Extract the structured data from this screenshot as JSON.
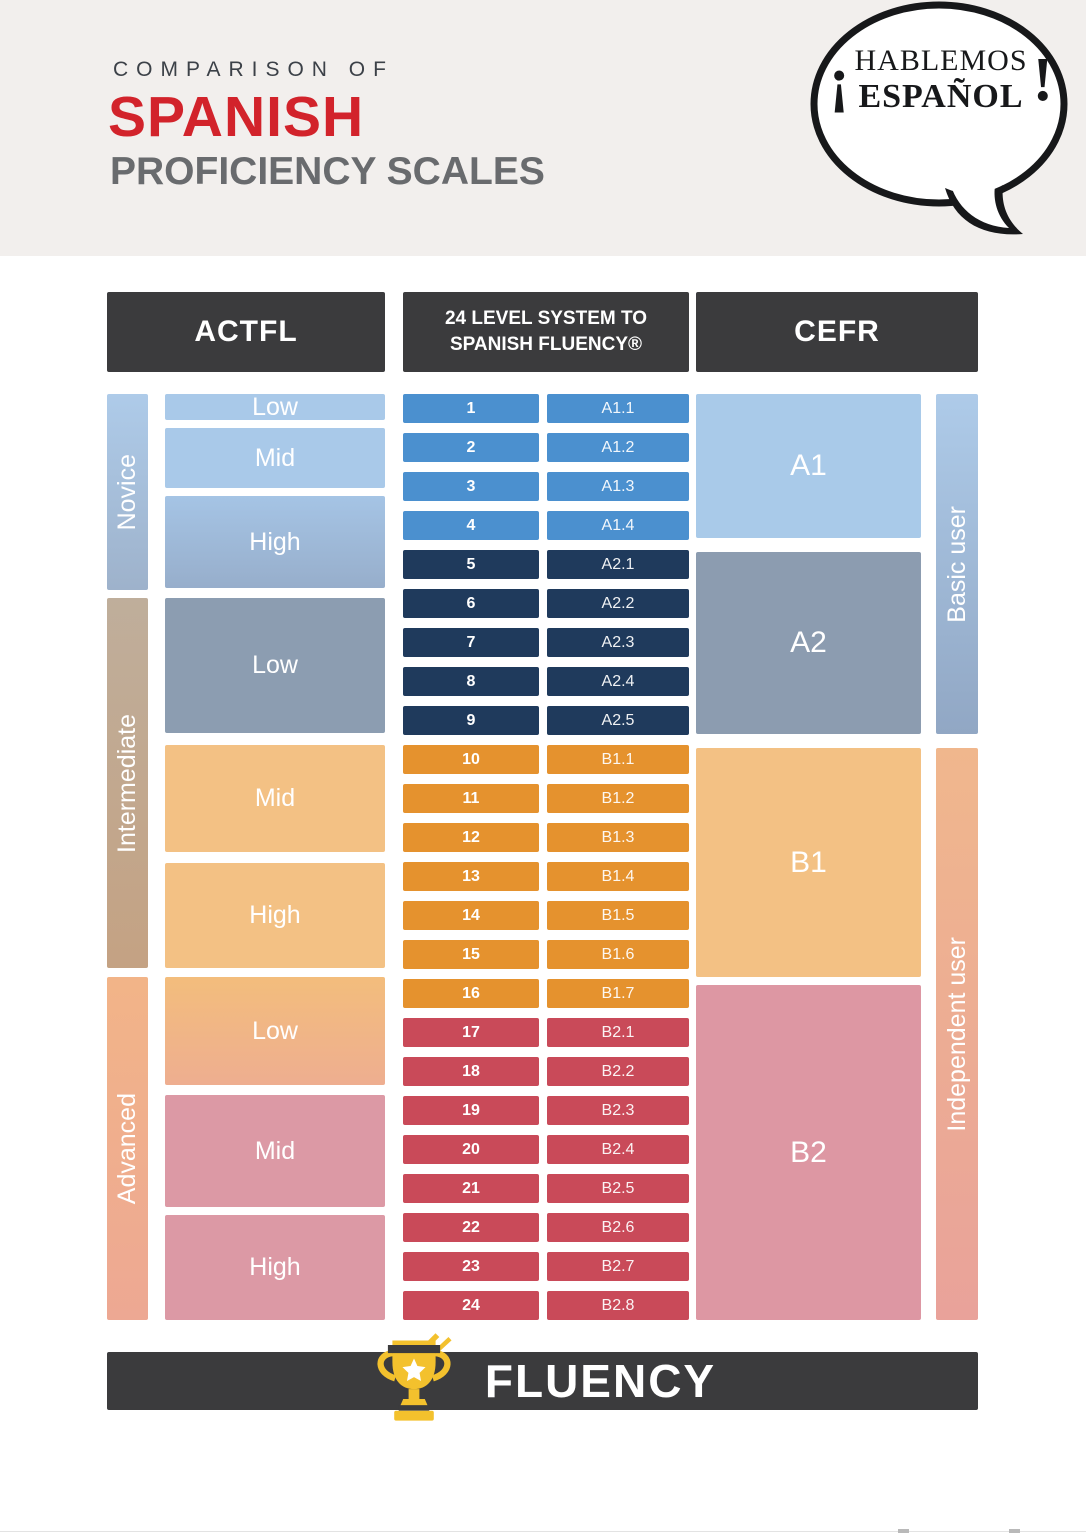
{
  "palette": {
    "page_bg": "#ffffff",
    "band_bg": "#f2efed",
    "header_box": "#3b3b3d",
    "title_red": "#d2232b",
    "title_gray": "#696b6e",
    "eyebrow_gray": "#3c4148",
    "level_blue": "#4b90cf",
    "level_navy": "#1f3a5c",
    "level_orange": "#e5922e",
    "level_red": "#c94a59",
    "novice_light": "#a9c9e9",
    "novice_high_top": "#a5c4e5",
    "novice_high_bottom": "#97aecb",
    "slate": "#8c9db1",
    "int_orange": "#f3c184",
    "adv_low_top": "#f3bd7c",
    "adv_low_bottom": "#eeae90",
    "adv_pink": "#dc99a5",
    "novice_bar_top": "#aecbe9",
    "novice_bar_bottom": "#9eb2cb",
    "int_bar_top": "#bfae9b",
    "int_bar_bottom": "#c4a283",
    "adv_bar_top": "#f2b488",
    "adv_bar_bottom": "#eda893",
    "cefr_a1": "#a9cae9",
    "cefr_a2": "#8c9cb0",
    "cefr_b1": "#f3c184",
    "cefr_b2": "#dd97a3",
    "basic_bar_top": "#aecbe9",
    "basic_bar_bottom": "#91a7c4",
    "indep_bar_top": "#f0b78d",
    "indep_bar_bottom": "#e9a29a",
    "fluency_bar": "#3b3b3d",
    "trophy_gold": "#f3c12d",
    "trophy_dark": "#3b3b3d",
    "logo_ink": "#17181a"
  },
  "header": {
    "eyebrow": "COMPARISON OF",
    "title": "SPANISH",
    "subtitle": "PROFICIENCY SCALES",
    "logo": {
      "open_exclaim": "¡",
      "line1": "HABLEMOS",
      "line2": "ESPAÑOL",
      "close_exclaim": "!"
    }
  },
  "table": {
    "actfl": {
      "header": "ACTFL",
      "groups": [
        {
          "label": "Novice",
          "boxes": [
            {
              "label": "Low"
            },
            {
              "label": "Mid"
            },
            {
              "label": "High"
            }
          ]
        },
        {
          "label": "Intermediate",
          "boxes": [
            {
              "label": "Low"
            },
            {
              "label": "Mid"
            },
            {
              "label": "High"
            }
          ]
        },
        {
          "label": "Advanced",
          "boxes": [
            {
              "label": "Low"
            },
            {
              "label": "Mid"
            },
            {
              "label": "High"
            }
          ]
        }
      ]
    },
    "levels": {
      "header_line1": "24 LEVEL SYSTEM TO",
      "header_line2": "SPANISH FLUENCY®",
      "rows": [
        {
          "num": "1",
          "code": "A1.1",
          "group": "blue"
        },
        {
          "num": "2",
          "code": "A1.2",
          "group": "blue"
        },
        {
          "num": "3",
          "code": "A1.3",
          "group": "blue"
        },
        {
          "num": "4",
          "code": "A1.4",
          "group": "blue"
        },
        {
          "num": "5",
          "code": "A2.1",
          "group": "navy"
        },
        {
          "num": "6",
          "code": "A2.2",
          "group": "navy"
        },
        {
          "num": "7",
          "code": "A2.3",
          "group": "navy"
        },
        {
          "num": "8",
          "code": "A2.4",
          "group": "navy"
        },
        {
          "num": "9",
          "code": "A2.5",
          "group": "navy"
        },
        {
          "num": "10",
          "code": "B1.1",
          "group": "orange"
        },
        {
          "num": "11",
          "code": "B1.2",
          "group": "orange"
        },
        {
          "num": "12",
          "code": "B1.3",
          "group": "orange"
        },
        {
          "num": "13",
          "code": "B1.4",
          "group": "orange"
        },
        {
          "num": "14",
          "code": "B1.5",
          "group": "orange"
        },
        {
          "num": "15",
          "code": "B1.6",
          "group": "orange"
        },
        {
          "num": "16",
          "code": "B1.7",
          "group": "orange"
        },
        {
          "num": "17",
          "code": "B2.1",
          "group": "red"
        },
        {
          "num": "18",
          "code": "B2.2",
          "group": "red"
        },
        {
          "num": "19",
          "code": "B2.3",
          "group": "red"
        },
        {
          "num": "20",
          "code": "B2.4",
          "group": "red"
        },
        {
          "num": "21",
          "code": "B2.5",
          "group": "red"
        },
        {
          "num": "22",
          "code": "B2.6",
          "group": "red"
        },
        {
          "num": "23",
          "code": "B2.7",
          "group": "red"
        },
        {
          "num": "24",
          "code": "B2.8",
          "group": "red"
        }
      ]
    },
    "cefr": {
      "header": "CEFR",
      "bands": [
        {
          "label": "A1"
        },
        {
          "label": "A2"
        },
        {
          "label": "B1"
        },
        {
          "label": "B2"
        }
      ],
      "user_groups": [
        {
          "label": "Basic user"
        },
        {
          "label": "Independent user"
        }
      ]
    }
  },
  "footer": {
    "label": "FLUENCY",
    "icon": "trophy-icon"
  }
}
